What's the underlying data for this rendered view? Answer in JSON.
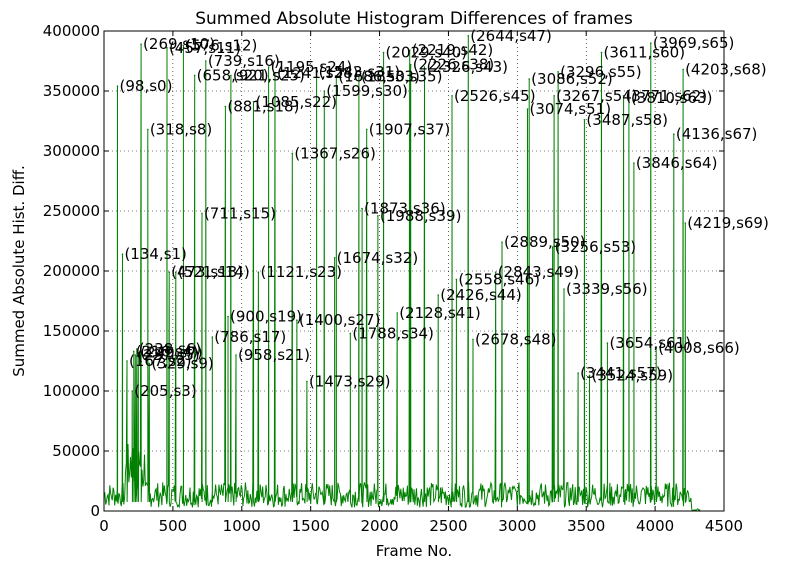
{
  "chart_data": {
    "type": "line",
    "title": "Summed Absolute Histogram Differences of frames",
    "xlabel": "Frame No.",
    "ylabel": "Summed Absolute Hist. Diff.",
    "xlim": [
      0,
      4500
    ],
    "ylim": [
      0,
      400000
    ],
    "xticks": [
      0,
      500,
      1000,
      1500,
      2000,
      2500,
      3000,
      3500,
      4000,
      4500
    ],
    "yticks": [
      0,
      50000,
      100000,
      150000,
      200000,
      250000,
      300000,
      350000,
      400000
    ],
    "grid": true,
    "line_color": "#008000",
    "baseline": {
      "start": 0,
      "end": 4330,
      "typical": 15000
    },
    "peaks": [
      {
        "label": "(98,s0)",
        "x": 98,
        "y": 354000
      },
      {
        "label": "(134,s1)",
        "x": 134,
        "y": 214000
      },
      {
        "label": "(167,s2)",
        "x": 167,
        "y": 125000
      },
      {
        "label": "(205,s3)",
        "x": 205,
        "y": 100000
      },
      {
        "label": "(216,s4)",
        "x": 216,
        "y": 133000
      },
      {
        "label": "(227,s5)",
        "x": 227,
        "y": 130000
      },
      {
        "label": "(238,s6)",
        "x": 238,
        "y": 135000
      },
      {
        "label": "(249,s7)",
        "x": 249,
        "y": 132000
      },
      {
        "label": "(318,s8)",
        "x": 318,
        "y": 318000
      },
      {
        "label": "(329,s9)",
        "x": 329,
        "y": 123000
      },
      {
        "label": "(269,s10)",
        "x": 269,
        "y": 389000
      },
      {
        "label": "(457,s11)",
        "x": 457,
        "y": 386000
      },
      {
        "label": "(576,s12)",
        "x": 576,
        "y": 388000
      },
      {
        "label": "(473,s13)",
        "x": 473,
        "y": 199000
      },
      {
        "label": "(521,s14)",
        "x": 521,
        "y": 199000
      },
      {
        "label": "(711,s15)",
        "x": 711,
        "y": 248000
      },
      {
        "label": "(739,s16)",
        "x": 739,
        "y": 375000
      },
      {
        "label": "(786,s17)",
        "x": 786,
        "y": 145000
      },
      {
        "label": "(881,s18)",
        "x": 881,
        "y": 337000
      },
      {
        "label": "(900,s19)",
        "x": 900,
        "y": 162000
      },
      {
        "label": "(658,s20)",
        "x": 658,
        "y": 363000
      },
      {
        "label": "(958,s21)",
        "x": 958,
        "y": 130000
      },
      {
        "label": "(1085,s22)",
        "x": 1085,
        "y": 341000
      },
      {
        "label": "(1121,s23)",
        "x": 1121,
        "y": 199000
      },
      {
        "label": "(1195,s24)",
        "x": 1195,
        "y": 370000
      },
      {
        "label": "(921,s25)",
        "x": 921,
        "y": 363000
      },
      {
        "label": "(1367,s26)",
        "x": 1367,
        "y": 298000
      },
      {
        "label": "(1400,s27)",
        "x": 1400,
        "y": 159000
      },
      {
        "label": "(1241,s28)",
        "x": 1241,
        "y": 365000
      },
      {
        "label": "(1473,s29)",
        "x": 1473,
        "y": 108000
      },
      {
        "label": "(1599,s30)",
        "x": 1599,
        "y": 350000
      },
      {
        "label": "(1543,s31)",
        "x": 1543,
        "y": 366000
      },
      {
        "label": "(1674,s32)",
        "x": 1674,
        "y": 211000
      },
      {
        "label": "(1686,s33)",
        "x": 1686,
        "y": 362000
      },
      {
        "label": "(1788,s34)",
        "x": 1788,
        "y": 148000
      },
      {
        "label": "(1850,s35)",
        "x": 1850,
        "y": 362000
      },
      {
        "label": "(1873,s36)",
        "x": 1873,
        "y": 252000
      },
      {
        "label": "(1907,s37)",
        "x": 1907,
        "y": 318000
      },
      {
        "label": "(2226,s38)",
        "x": 2226,
        "y": 372000
      },
      {
        "label": "(1988,s39)",
        "x": 1988,
        "y": 246000
      },
      {
        "label": "(2029,s40)",
        "x": 2029,
        "y": 382000
      },
      {
        "label": "(2128,s41)",
        "x": 2128,
        "y": 165000
      },
      {
        "label": "(2219,s42)",
        "x": 2219,
        "y": 384000
      },
      {
        "label": "(2326,s43)",
        "x": 2326,
        "y": 370000
      },
      {
        "label": "(2426,s44)",
        "x": 2426,
        "y": 180000
      },
      {
        "label": "(2526,s45)",
        "x": 2526,
        "y": 346000
      },
      {
        "label": "(2558,s46)",
        "x": 2558,
        "y": 193000
      },
      {
        "label": "(2644,s47)",
        "x": 2644,
        "y": 396000
      },
      {
        "label": "(2678,s48)",
        "x": 2678,
        "y": 143000
      },
      {
        "label": "(2843,s49)",
        "x": 2843,
        "y": 199000
      },
      {
        "label": "(2889,s50)",
        "x": 2889,
        "y": 224000
      },
      {
        "label": "(3074,s51)",
        "x": 3074,
        "y": 335000
      },
      {
        "label": "(3086,s52)",
        "x": 3086,
        "y": 360000
      },
      {
        "label": "(3256,s53)",
        "x": 3256,
        "y": 220000
      },
      {
        "label": "(3267,s54)",
        "x": 3267,
        "y": 346000
      },
      {
        "label": "(3296,s55)",
        "x": 3296,
        "y": 366000
      },
      {
        "label": "(3339,s56)",
        "x": 3339,
        "y": 185000
      },
      {
        "label": "(3441,s57)",
        "x": 3441,
        "y": 115000
      },
      {
        "label": "(3487,s58)",
        "x": 3487,
        "y": 326000
      },
      {
        "label": "(3524,s59)",
        "x": 3524,
        "y": 113000
      },
      {
        "label": "(3611,s60)",
        "x": 3611,
        "y": 382000
      },
      {
        "label": "(3654,s61)",
        "x": 3654,
        "y": 140000
      },
      {
        "label": "(3771,s62)",
        "x": 3771,
        "y": 346000
      },
      {
        "label": "(3810,s63)",
        "x": 3810,
        "y": 344000
      },
      {
        "label": "(3846,s64)",
        "x": 3846,
        "y": 290000
      },
      {
        "label": "(3969,s65)",
        "x": 3969,
        "y": 390000
      },
      {
        "label": "(4008,s66)",
        "x": 4008,
        "y": 136000
      },
      {
        "label": "(4136,s67)",
        "x": 4136,
        "y": 314000
      },
      {
        "label": "(4203,s68)",
        "x": 4203,
        "y": 368000
      },
      {
        "label": "(4219,s69)",
        "x": 4219,
        "y": 240000
      }
    ]
  }
}
